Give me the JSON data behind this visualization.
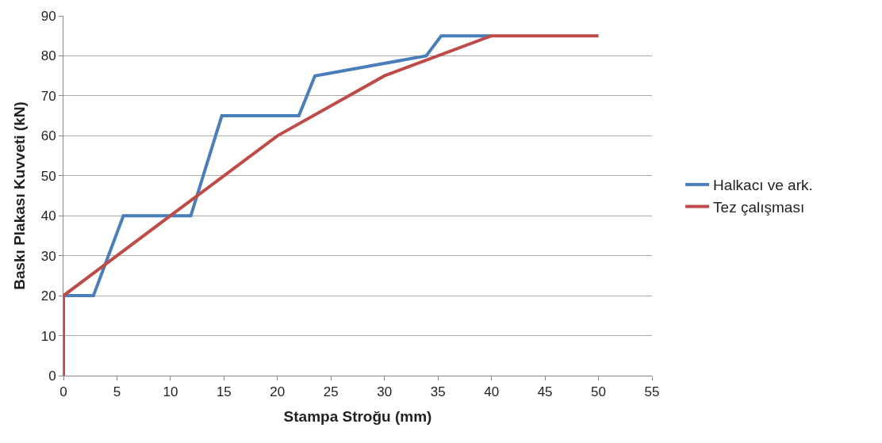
{
  "chart_data": {
    "type": "line",
    "xlabel": "Stampa Stroğu (mm)",
    "ylabel": "Baskı Plakası Kuvveti (kN)",
    "xlim": [
      0,
      55
    ],
    "xticks": [
      0,
      5,
      10,
      15,
      20,
      25,
      30,
      35,
      40,
      45,
      50,
      55
    ],
    "ylim": [
      0,
      90
    ],
    "yticks": [
      0,
      10,
      20,
      30,
      40,
      50,
      60,
      70,
      80,
      90
    ],
    "grid": "y",
    "legend": "right",
    "marker": "none",
    "line_style": "solid",
    "series": [
      {
        "name": "Halkacı ve ark.",
        "color": "#4a7ebb",
        "x": [
          0,
          2.8,
          5.6,
          11.9,
          14.8,
          22,
          23.5,
          33.9,
          35.3,
          40
        ],
        "values": [
          20,
          20,
          40,
          40,
          65,
          65,
          75,
          80,
          85,
          85
        ]
      },
      {
        "name": "Tez çalışması",
        "color": "#be4b48",
        "x": [
          0,
          0,
          10,
          20,
          30,
          40,
          50
        ],
        "values": [
          0,
          20,
          40,
          60,
          75,
          85,
          85
        ]
      }
    ]
  }
}
